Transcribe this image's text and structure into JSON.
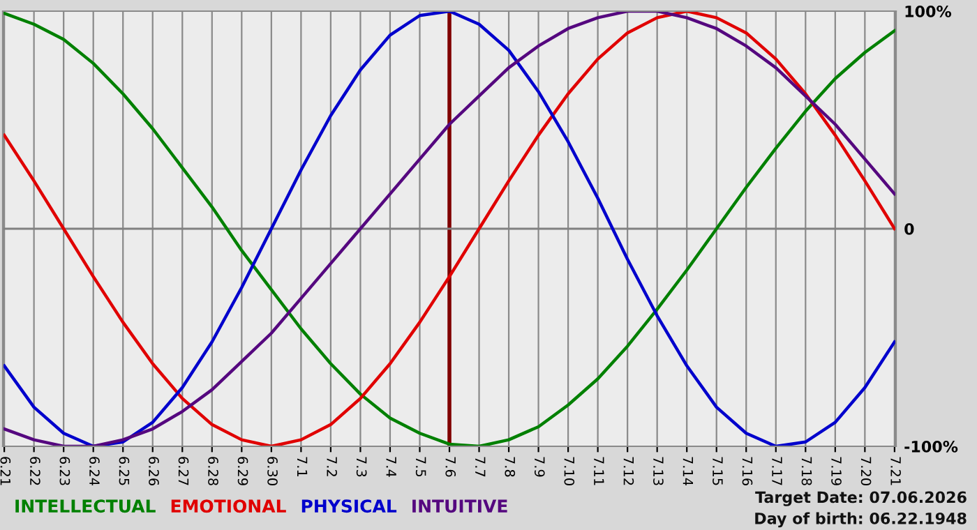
{
  "chart_data": {
    "type": "line",
    "categories": [
      "6.21",
      "6.22",
      "6.23",
      "6.24",
      "6.25",
      "6.26",
      "6.27",
      "6.28",
      "6.29",
      "6.30",
      "7.1",
      "7.2",
      "7.3",
      "7.4",
      "7.5",
      "7.6",
      "7.7",
      "7.8",
      "7.9",
      "7.10",
      "7.11",
      "7.12",
      "7.13",
      "7.14",
      "7.15",
      "7.16",
      "7.17",
      "7.18",
      "7.19",
      "7.20",
      "7.21"
    ],
    "series": [
      {
        "name": "INTELLECTUAL",
        "color": "#008000",
        "values": [
          99,
          94,
          87,
          76,
          62,
          46,
          28,
          10,
          -10,
          -28,
          -46,
          -62,
          -76,
          -87,
          -94,
          -99,
          -100,
          -97,
          -91,
          -81,
          -69,
          -54,
          -37,
          -19,
          0,
          19,
          37,
          54,
          69,
          81,
          91
        ]
      },
      {
        "name": "EMOTIONAL",
        "color": "#e00000",
        "values": [
          43,
          22,
          0,
          -22,
          -43,
          -62,
          -78,
          -90,
          -97,
          -100,
          -97,
          -90,
          -78,
          -62,
          -43,
          -22,
          0,
          22,
          43,
          62,
          78,
          90,
          97,
          100,
          97,
          90,
          78,
          62,
          43,
          22,
          0
        ]
      },
      {
        "name": "PHYSICAL",
        "color": "#0000cc",
        "values": [
          -63,
          -82,
          -94,
          -100,
          -98,
          -89,
          -73,
          -52,
          -27,
          0,
          27,
          52,
          73,
          89,
          98,
          100,
          94,
          82,
          63,
          40,
          14,
          -14,
          -40,
          -63,
          -82,
          -94,
          -100,
          -98,
          -89,
          -73,
          -52
        ]
      },
      {
        "name": "INTUITIVE",
        "color": "#55087f",
        "values": [
          -92,
          -97,
          -100,
          -100,
          -97,
          -92,
          -84,
          -74,
          -61,
          -48,
          -32,
          -16,
          0,
          16,
          32,
          48,
          61,
          74,
          84,
          92,
          97,
          100,
          100,
          97,
          92,
          84,
          74,
          61,
          48,
          32,
          16
        ]
      }
    ],
    "ylim": [
      -100,
      100
    ],
    "yticks": [
      {
        "value": 100,
        "label": "100%"
      },
      0,
      {
        "value": -100,
        "label": "-100%"
      }
    ],
    "grid": "x",
    "legend": "bottom",
    "ref_lines": [
      {
        "axis": "x",
        "value": "7.6",
        "label": null,
        "color": "#800000"
      },
      {
        "axis": "y",
        "value": 0,
        "label": null,
        "color": "#808080"
      }
    ],
    "annotations": [
      "Target Date: 07.06.2026",
      "Day of birth: 06.22.1948"
    ]
  }
}
